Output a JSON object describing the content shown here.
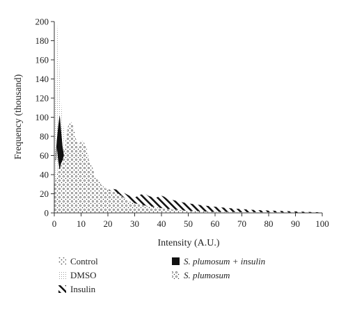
{
  "chart_data": {
    "type": "area",
    "title": "",
    "xlabel": "Intensity (A.U.)",
    "ylabel": "Frequency (thousand)",
    "xlim": [
      0,
      100
    ],
    "ylim": [
      0,
      200
    ],
    "xticks": [
      0,
      10,
      20,
      30,
      40,
      50,
      60,
      70,
      80,
      90,
      100
    ],
    "yticks": [
      0,
      20,
      40,
      60,
      80,
      100,
      120,
      140,
      160,
      180,
      200
    ],
    "grid": false,
    "legend_position": "bottom",
    "series": [
      {
        "name": "Control",
        "pattern": "diagonal-dots",
        "x": [
          0,
          1,
          2,
          3,
          4,
          5,
          6,
          7,
          8,
          10,
          12,
          15,
          18,
          20,
          23,
          27,
          30,
          35,
          40,
          45,
          50,
          60,
          70,
          80,
          90,
          100
        ],
        "y": [
          10,
          30,
          40,
          45,
          48,
          50,
          48,
          45,
          42,
          38,
          32,
          25,
          18,
          14,
          10,
          7,
          5,
          3.5,
          2.5,
          2,
          1.5,
          1,
          0.6,
          0.3,
          0.2,
          0.1
        ]
      },
      {
        "name": "DMSO",
        "pattern": "fine-dots",
        "x": [
          0,
          0.5,
          1,
          1.5,
          2,
          2.5,
          3,
          4,
          5,
          6,
          8,
          10,
          15,
          20,
          30,
          40,
          60,
          80,
          100
        ],
        "y": [
          60,
          150,
          200,
          180,
          150,
          120,
          100,
          80,
          65,
          55,
          40,
          30,
          18,
          12,
          6,
          3,
          1,
          0.5,
          0.2
        ]
      },
      {
        "name": "Insulin",
        "pattern": "diagonal-stripes",
        "x": [
          0,
          5,
          10,
          15,
          20,
          22,
          24,
          25,
          26,
          28,
          30,
          32,
          34,
          35,
          36,
          38,
          40,
          41,
          42,
          45,
          48,
          50,
          55,
          60,
          65,
          70,
          75,
          80,
          85,
          90,
          95,
          100
        ],
        "y": [
          20,
          22,
          24,
          25,
          24,
          25,
          24,
          22,
          21,
          18,
          16,
          19,
          20,
          18,
          17,
          16,
          18,
          17,
          15,
          13,
          11,
          10,
          8,
          6.5,
          5,
          4,
          3,
          2.5,
          2,
          1.5,
          1,
          0.5
        ]
      },
      {
        "name": "S. plumosum + insulin",
        "pattern": "solid-black",
        "x": [
          0.5,
          1,
          1.5,
          2,
          2.5,
          3,
          3.5,
          3,
          2.5,
          2,
          1.5,
          1,
          0.5
        ],
        "y": [
          55,
          75,
          90,
          101,
          85,
          70,
          60,
          55,
          52,
          46,
          55,
          70,
          55
        ]
      },
      {
        "name": "S. plumosum",
        "pattern": "dots-circles",
        "x": [
          0,
          2,
          4,
          5,
          6,
          7,
          8,
          9,
          10,
          11,
          12,
          13,
          14,
          15,
          16,
          17,
          18,
          19,
          20,
          22,
          24,
          25,
          26,
          28,
          30,
          35,
          40,
          50,
          60,
          80,
          100
        ],
        "y": [
          30,
          50,
          70,
          90,
          96,
          92,
          78,
          70,
          76,
          74,
          68,
          55,
          50,
          40,
          35,
          32,
          28,
          26,
          24,
          22,
          20,
          18,
          16,
          12,
          10,
          7,
          5,
          2,
          1,
          0.5,
          0.2
        ]
      }
    ]
  },
  "legend": {
    "items": [
      {
        "label": "Control",
        "italic": false
      },
      {
        "label": "DMSO",
        "italic": false
      },
      {
        "label": "Insulin",
        "italic": false
      },
      {
        "label": "S. plumosum + insulin",
        "italic": true
      },
      {
        "label": "S. plumosum",
        "italic": true
      }
    ]
  }
}
